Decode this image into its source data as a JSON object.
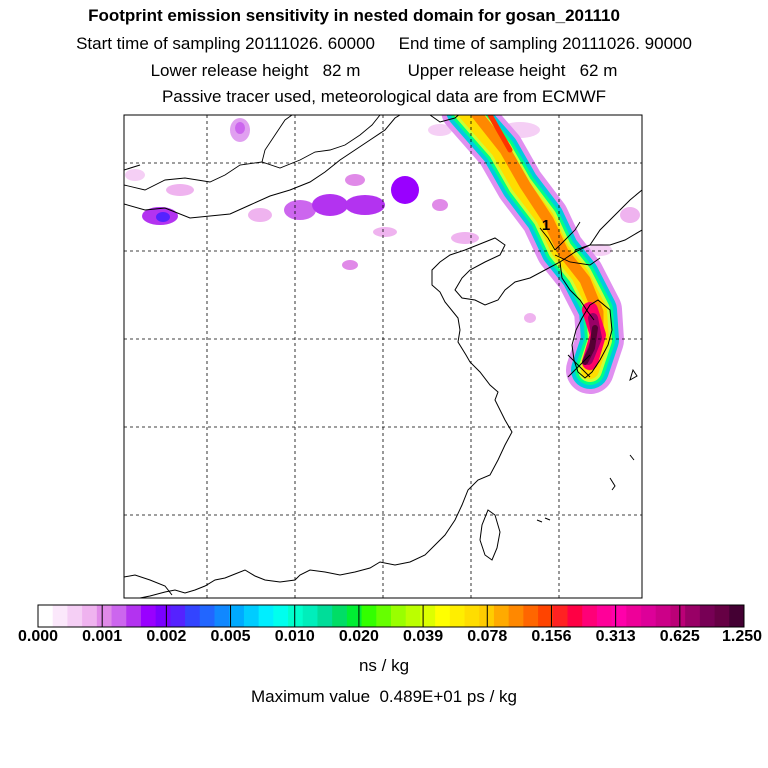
{
  "header": {
    "title": "Footprint emission sensitivity in nested domain for gosan_201110",
    "line2": "Start time of sampling 20111026. 60000     End time of sampling 20111026. 90000",
    "line3": "Lower release height   82 m          Upper release height   62 m",
    "line4": "Passive tracer used, meteorological data are from ECMWF"
  },
  "map": {
    "receptor_label": "1",
    "grid": "dashed",
    "plume_color_order": [
      "#ff66ff",
      "#00cccc",
      "#00ff66",
      "#ccff33",
      "#ffff00",
      "#ffaa00",
      "#ff5500",
      "#ff0066",
      "#990066",
      "#660033"
    ]
  },
  "colorbar": {
    "tick_labels": [
      "0.000",
      "0.001",
      "0.002",
      "0.005",
      "0.010",
      "0.020",
      "0.039",
      "0.078",
      "0.156",
      "0.313",
      "0.625",
      "1.250"
    ],
    "colors": [
      "#ffffff",
      "#fbe8fb",
      "#f5cff5",
      "#efb3ef",
      "#e08ae8",
      "#cc66ee",
      "#b333f0",
      "#9900ff",
      "#7a00ff",
      "#5522ff",
      "#3344ff",
      "#2266ff",
      "#1188ff",
      "#00aaff",
      "#00ccff",
      "#00eeff",
      "#00ffee",
      "#00ffcc",
      "#00eebb",
      "#00dd99",
      "#00dd66",
      "#00ee33",
      "#33ff00",
      "#66ff00",
      "#99ff00",
      "#bbff00",
      "#ddff00",
      "#ffff00",
      "#ffee00",
      "#ffdd00",
      "#ffcc00",
      "#ffaa00",
      "#ff8800",
      "#ff6600",
      "#ff4400",
      "#ff2222",
      "#ff0044",
      "#ff0077",
      "#ff0099",
      "#ff00aa",
      "#ee0099",
      "#dd0099",
      "#cc0088",
      "#bb0077",
      "#990066",
      "#770055",
      "#660044",
      "#440033"
    ],
    "units": "ns / kg"
  },
  "footer": {
    "max_value": "Maximum value  0.489E+01 ps / kg"
  }
}
